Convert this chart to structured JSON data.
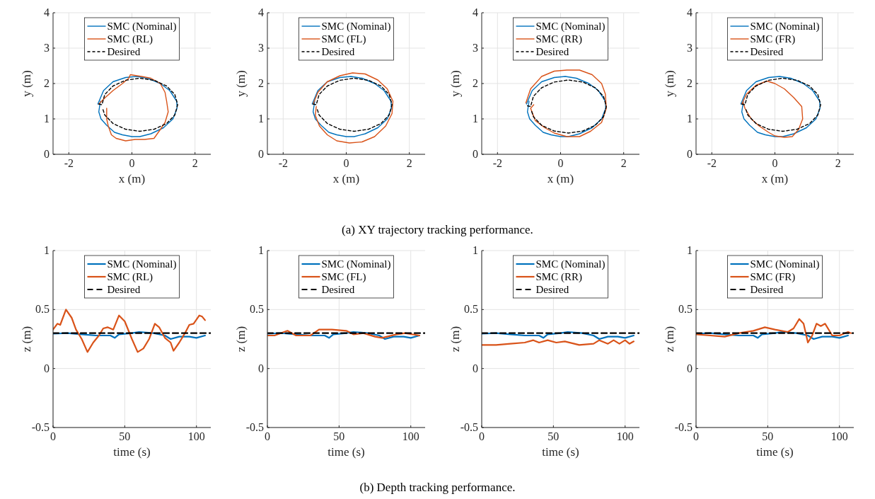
{
  "chart_data": [
    {
      "type": "line",
      "xlabel": "x (m)",
      "ylabel": "y (m)",
      "xlim": [
        -2.5,
        2.5
      ],
      "ylim": [
        0,
        4
      ],
      "xticks": [
        -2,
        0,
        2
      ],
      "yticks": [
        0,
        1,
        2,
        3,
        4
      ],
      "grid": true,
      "legend": "top",
      "annotations": [
        "(a) XY trajectory tracking performance."
      ],
      "series": [
        {
          "name": "SMC (Nominal)",
          "color": "#0072bd",
          "x": [
            -1.08,
            -0.9,
            -0.6,
            -0.2,
            0.15,
            0.5,
            0.9,
            1.2,
            1.42,
            1.43,
            1.3,
            1.0,
            0.6,
            0.25,
            0.0,
            -0.3,
            -0.55,
            -0.8,
            -0.98,
            -1.05,
            -1.0
          ],
          "values": [
            1.42,
            1.8,
            2.05,
            2.17,
            2.2,
            2.15,
            2.0,
            1.8,
            1.5,
            1.3,
            1.0,
            0.75,
            0.58,
            0.5,
            0.5,
            0.55,
            0.62,
            0.82,
            1.0,
            1.2,
            1.5
          ]
        },
        {
          "name": "SMC (RL)",
          "color": "#d95319",
          "x": [
            -1.05,
            -0.85,
            -0.6,
            -0.3,
            -0.1,
            -0.05,
            0.3,
            0.6,
            0.9,
            1.05,
            1.1,
            1.15,
            1.05,
            0.9,
            0.7,
            0.4,
            0.1,
            -0.2,
            -0.5,
            -0.65,
            -0.75,
            -0.8,
            -0.8
          ],
          "values": [
            1.42,
            1.6,
            1.8,
            2.0,
            2.15,
            2.25,
            2.2,
            2.15,
            2.0,
            1.75,
            1.5,
            1.2,
            0.9,
            0.7,
            0.45,
            0.42,
            0.42,
            0.38,
            0.45,
            0.55,
            0.8,
            1.0,
            1.3
          ]
        },
        {
          "name": "Desired",
          "color": "#000000",
          "line_style": "dashed",
          "x": [
            -1.05,
            -0.95,
            -0.86,
            -0.6,
            -0.21,
            0.25,
            0.71,
            1.1,
            1.36,
            1.45,
            1.36,
            1.1,
            0.71,
            0.25,
            -0.21,
            -0.6,
            -0.86,
            -0.93
          ],
          "values": [
            1.42,
            1.4,
            1.69,
            1.93,
            2.09,
            2.15,
            2.09,
            1.93,
            1.69,
            1.4,
            1.11,
            0.87,
            0.71,
            0.65,
            0.71,
            0.87,
            1.11,
            1.3
          ]
        }
      ]
    },
    {
      "type": "line",
      "xlabel": "x (m)",
      "ylabel": "y (m)",
      "xlim": [
        -2.5,
        2.5
      ],
      "ylim": [
        0,
        4
      ],
      "xticks": [
        -2,
        0,
        2
      ],
      "yticks": [
        0,
        1,
        2,
        3,
        4
      ],
      "grid": true,
      "legend": "top",
      "series": [
        {
          "name": "SMC (Nominal)",
          "color": "#0072bd",
          "x": [
            -1.08,
            -0.9,
            -0.6,
            -0.2,
            0.15,
            0.5,
            0.9,
            1.2,
            1.42,
            1.43,
            1.3,
            1.0,
            0.6,
            0.25,
            0.0,
            -0.3,
            -0.55,
            -0.8,
            -0.98,
            -1.05,
            -1.0
          ],
          "values": [
            1.42,
            1.8,
            2.05,
            2.17,
            2.2,
            2.15,
            2.0,
            1.8,
            1.5,
            1.3,
            1.0,
            0.75,
            0.58,
            0.5,
            0.5,
            0.55,
            0.62,
            0.82,
            1.0,
            1.2,
            1.5
          ]
        },
        {
          "name": "SMC (FL)",
          "color": "#d95319",
          "x": [
            -1.05,
            -0.9,
            -0.6,
            -0.2,
            0.2,
            0.6,
            1.0,
            1.3,
            1.48,
            1.45,
            1.25,
            0.9,
            0.5,
            0.1,
            -0.3,
            -0.6,
            -0.85,
            -0.98,
            -0.95
          ],
          "values": [
            1.42,
            1.75,
            2.05,
            2.22,
            2.3,
            2.27,
            2.1,
            1.85,
            1.5,
            1.15,
            0.8,
            0.5,
            0.35,
            0.32,
            0.38,
            0.55,
            0.8,
            1.1,
            1.35
          ]
        },
        {
          "name": "Desired",
          "color": "#000000",
          "line_style": "dashed",
          "x": [
            -1.05,
            -0.95,
            -0.86,
            -0.6,
            -0.21,
            0.25,
            0.71,
            1.1,
            1.36,
            1.45,
            1.36,
            1.1,
            0.71,
            0.25,
            -0.21,
            -0.6,
            -0.86,
            -0.93
          ],
          "values": [
            1.42,
            1.4,
            1.69,
            1.93,
            2.09,
            2.15,
            2.09,
            1.93,
            1.69,
            1.4,
            1.11,
            0.87,
            0.71,
            0.65,
            0.71,
            0.87,
            1.11,
            1.3
          ]
        }
      ]
    },
    {
      "type": "line",
      "xlabel": "x (m)",
      "ylabel": "y (m)",
      "xlim": [
        -2.5,
        2.5
      ],
      "ylim": [
        0,
        4
      ],
      "xticks": [
        -2,
        0,
        2
      ],
      "yticks": [
        0,
        1,
        2,
        3,
        4
      ],
      "grid": true,
      "legend": "top",
      "series": [
        {
          "name": "SMC (Nominal)",
          "color": "#0072bd",
          "x": [
            -1.08,
            -0.9,
            -0.6,
            -0.2,
            0.15,
            0.5,
            0.9,
            1.2,
            1.42,
            1.43,
            1.3,
            1.0,
            0.6,
            0.25,
            0.0,
            -0.3,
            -0.55,
            -0.8,
            -0.98,
            -1.05,
            -1.0
          ],
          "values": [
            1.42,
            1.8,
            2.05,
            2.17,
            2.2,
            2.15,
            2.0,
            1.8,
            1.5,
            1.3,
            1.0,
            0.75,
            0.58,
            0.5,
            0.5,
            0.55,
            0.62,
            0.82,
            1.0,
            1.2,
            1.5
          ]
        },
        {
          "name": "SMC (RR)",
          "color": "#d95319",
          "x": [
            -1.1,
            -0.95,
            -0.6,
            -0.2,
            0.2,
            0.6,
            1.0,
            1.3,
            1.42,
            1.45,
            1.3,
            0.95,
            0.6,
            0.2,
            -0.2,
            -0.5,
            -0.8,
            -0.95,
            -0.85
          ],
          "values": [
            1.45,
            1.85,
            2.2,
            2.35,
            2.38,
            2.38,
            2.25,
            2.0,
            1.7,
            1.3,
            0.9,
            0.65,
            0.5,
            0.5,
            0.6,
            0.75,
            0.95,
            1.3,
            1.4
          ]
        },
        {
          "name": "Desired",
          "color": "#000000",
          "line_style": "dashed",
          "x": [
            -1.05,
            -0.95,
            -0.86,
            -0.6,
            -0.21,
            0.25,
            0.71,
            1.1,
            1.36,
            1.45,
            1.36,
            1.1,
            0.71,
            0.25,
            -0.21,
            -0.6,
            -0.86,
            -0.93
          ],
          "values": [
            1.37,
            1.35,
            1.64,
            1.88,
            2.04,
            2.1,
            2.04,
            1.88,
            1.64,
            1.35,
            1.06,
            0.82,
            0.66,
            0.6,
            0.66,
            0.82,
            1.06,
            1.25
          ]
        }
      ]
    },
    {
      "type": "line",
      "xlabel": "x (m)",
      "ylabel": "y (m)",
      "xlim": [
        -2.5,
        2.5
      ],
      "ylim": [
        0,
        4
      ],
      "xticks": [
        -2,
        0,
        2
      ],
      "yticks": [
        0,
        1,
        2,
        3,
        4
      ],
      "grid": true,
      "legend": "top",
      "series": [
        {
          "name": "SMC (Nominal)",
          "color": "#0072bd",
          "x": [
            -1.08,
            -0.9,
            -0.6,
            -0.2,
            0.15,
            0.5,
            0.9,
            1.2,
            1.42,
            1.43,
            1.3,
            1.0,
            0.6,
            0.25,
            0.0,
            -0.3,
            -0.55,
            -0.8,
            -0.98,
            -1.05,
            -1.0
          ],
          "values": [
            1.42,
            1.8,
            2.05,
            2.17,
            2.2,
            2.15,
            2.0,
            1.8,
            1.5,
            1.3,
            1.0,
            0.75,
            0.58,
            0.5,
            0.5,
            0.55,
            0.62,
            0.82,
            1.0,
            1.2,
            1.5
          ]
        },
        {
          "name": "SMC (FR)",
          "color": "#d95319",
          "x": [
            -1.05,
            -0.9,
            -0.6,
            -0.25,
            0.0,
            0.3,
            0.6,
            0.85,
            0.88,
            0.75,
            0.55,
            0.3,
            0.0,
            -0.2,
            -0.5,
            -0.75,
            -0.95,
            -1.0
          ],
          "values": [
            1.42,
            1.7,
            1.95,
            2.07,
            2.0,
            1.85,
            1.6,
            1.35,
            1.0,
            0.7,
            0.5,
            0.48,
            0.52,
            0.62,
            0.8,
            1.0,
            1.3,
            1.45
          ]
        },
        {
          "name": "Desired",
          "color": "#000000",
          "line_style": "dashed",
          "x": [
            -1.05,
            -0.95,
            -0.86,
            -0.6,
            -0.21,
            0.25,
            0.71,
            1.1,
            1.36,
            1.45,
            1.36,
            1.1,
            0.71,
            0.25,
            -0.21,
            -0.6,
            -0.86,
            -0.93
          ],
          "values": [
            1.42,
            1.4,
            1.69,
            1.93,
            2.09,
            2.15,
            2.09,
            1.93,
            1.69,
            1.4,
            1.11,
            0.87,
            0.71,
            0.65,
            0.71,
            0.87,
            1.11,
            1.3
          ]
        }
      ]
    },
    {
      "type": "line",
      "xlabel": "time (s)",
      "ylabel": "z (m)",
      "xlim": [
        0,
        110
      ],
      "ylim": [
        -0.5,
        1
      ],
      "xticks": [
        0,
        50,
        100
      ],
      "yticks": [
        -0.5,
        0,
        0.5,
        1
      ],
      "grid": true,
      "legend": "top",
      "annotations": [
        "(b) Depth tracking performance."
      ],
      "series": [
        {
          "name": "SMC (Nominal)",
          "color": "#0072bd",
          "x": [
            0,
            10,
            20,
            30,
            40,
            43,
            46,
            55,
            60,
            70,
            78,
            82,
            88,
            95,
            100,
            106
          ],
          "values": [
            0.295,
            0.3,
            0.29,
            0.28,
            0.28,
            0.26,
            0.29,
            0.3,
            0.31,
            0.3,
            0.28,
            0.25,
            0.27,
            0.27,
            0.26,
            0.28
          ]
        },
        {
          "name": "SMC (RL)",
          "color": "#d95319",
          "x": [
            0,
            3,
            5,
            9,
            13,
            16,
            20,
            24,
            28,
            32,
            35,
            38,
            42,
            46,
            50,
            55,
            59,
            63,
            67,
            71,
            74,
            78,
            82,
            84,
            88,
            92,
            95,
            98,
            102,
            104,
            106
          ],
          "values": [
            0.33,
            0.38,
            0.37,
            0.5,
            0.43,
            0.33,
            0.25,
            0.14,
            0.22,
            0.28,
            0.34,
            0.35,
            0.33,
            0.45,
            0.4,
            0.25,
            0.14,
            0.17,
            0.25,
            0.38,
            0.35,
            0.26,
            0.22,
            0.15,
            0.22,
            0.3,
            0.37,
            0.38,
            0.45,
            0.44,
            0.41
          ]
        },
        {
          "name": "Desired",
          "color": "#000000",
          "line_style": "dashed",
          "x": [
            0,
            110
          ],
          "values": [
            0.3,
            0.3
          ]
        }
      ]
    },
    {
      "type": "line",
      "xlabel": "time (s)",
      "ylabel": "z (m)",
      "xlim": [
        0,
        110
      ],
      "ylim": [
        -0.5,
        1
      ],
      "xticks": [
        0,
        50,
        100
      ],
      "yticks": [
        -0.5,
        0,
        0.5,
        1
      ],
      "grid": true,
      "legend": "top",
      "series": [
        {
          "name": "SMC (Nominal)",
          "color": "#0072bd",
          "x": [
            0,
            10,
            20,
            30,
            40,
            43,
            46,
            55,
            60,
            70,
            78,
            82,
            88,
            95,
            100,
            106
          ],
          "values": [
            0.295,
            0.3,
            0.29,
            0.28,
            0.28,
            0.26,
            0.29,
            0.3,
            0.31,
            0.3,
            0.28,
            0.25,
            0.27,
            0.27,
            0.26,
            0.28
          ]
        },
        {
          "name": "SMC (FL)",
          "color": "#d95319",
          "x": [
            0,
            5,
            14,
            20,
            30,
            36,
            45,
            55,
            60,
            67,
            75,
            80,
            90,
            96,
            106
          ],
          "values": [
            0.28,
            0.28,
            0.32,
            0.28,
            0.28,
            0.33,
            0.33,
            0.32,
            0.29,
            0.3,
            0.27,
            0.26,
            0.29,
            0.3,
            0.28
          ]
        },
        {
          "name": "Desired",
          "color": "#000000",
          "line_style": "dashed",
          "x": [
            0,
            110
          ],
          "values": [
            0.3,
            0.3
          ]
        }
      ]
    },
    {
      "type": "line",
      "xlabel": "time (s)",
      "ylabel": "z (m)",
      "xlim": [
        0,
        110
      ],
      "ylim": [
        -0.5,
        1
      ],
      "xticks": [
        0,
        50,
        100
      ],
      "yticks": [
        -0.5,
        0,
        0.5,
        1
      ],
      "grid": true,
      "legend": "top",
      "series": [
        {
          "name": "SMC (Nominal)",
          "color": "#0072bd",
          "x": [
            0,
            10,
            20,
            30,
            40,
            43,
            46,
            55,
            60,
            70,
            78,
            82,
            88,
            95,
            100,
            106
          ],
          "values": [
            0.295,
            0.3,
            0.29,
            0.28,
            0.28,
            0.26,
            0.29,
            0.3,
            0.31,
            0.3,
            0.28,
            0.25,
            0.27,
            0.27,
            0.26,
            0.28
          ]
        },
        {
          "name": "SMC (RR)",
          "color": "#d95319",
          "x": [
            0,
            10,
            20,
            30,
            36,
            40,
            46,
            52,
            58,
            68,
            78,
            82,
            88,
            92,
            96,
            100,
            103,
            106
          ],
          "values": [
            0.2,
            0.2,
            0.21,
            0.22,
            0.24,
            0.22,
            0.24,
            0.22,
            0.23,
            0.2,
            0.21,
            0.24,
            0.21,
            0.24,
            0.21,
            0.24,
            0.21,
            0.23
          ]
        },
        {
          "name": "Desired",
          "color": "#000000",
          "line_style": "dashed",
          "x": [
            0,
            110
          ],
          "values": [
            0.3,
            0.3
          ]
        }
      ]
    },
    {
      "type": "line",
      "xlabel": "time (s)",
      "ylabel": "z (m)",
      "xlim": [
        0,
        110
      ],
      "ylim": [
        -0.5,
        1
      ],
      "xticks": [
        0,
        50,
        100
      ],
      "yticks": [
        -0.5,
        0,
        0.5,
        1
      ],
      "grid": true,
      "legend": "top",
      "series": [
        {
          "name": "SMC (Nominal)",
          "color": "#0072bd",
          "x": [
            0,
            10,
            20,
            30,
            40,
            43,
            46,
            55,
            60,
            70,
            78,
            82,
            88,
            95,
            100,
            106
          ],
          "values": [
            0.295,
            0.3,
            0.29,
            0.28,
            0.28,
            0.26,
            0.29,
            0.3,
            0.31,
            0.3,
            0.28,
            0.25,
            0.27,
            0.27,
            0.26,
            0.28
          ]
        },
        {
          "name": "SMC (FR)",
          "color": "#d95319",
          "x": [
            0,
            10,
            20,
            30,
            40,
            48,
            55,
            64,
            68,
            72,
            75,
            78,
            81,
            84,
            87,
            90,
            95,
            100,
            106,
            108
          ],
          "values": [
            0.29,
            0.28,
            0.27,
            0.3,
            0.32,
            0.35,
            0.33,
            0.31,
            0.34,
            0.42,
            0.38,
            0.22,
            0.28,
            0.38,
            0.36,
            0.38,
            0.28,
            0.28,
            0.31,
            0.3
          ]
        },
        {
          "name": "Desired",
          "color": "#000000",
          "line_style": "dashed",
          "x": [
            0,
            110
          ],
          "values": [
            0.3,
            0.3
          ]
        }
      ]
    }
  ]
}
